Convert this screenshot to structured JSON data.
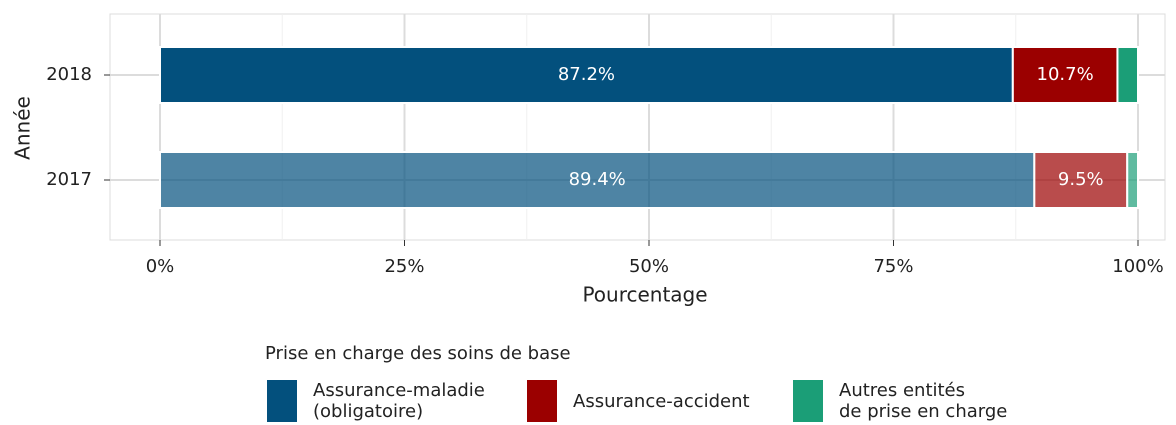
{
  "chart_data": {
    "type": "stacked_barh",
    "xlabel": "Pourcentage",
    "ylabel": "Année",
    "categories": [
      "2017",
      "2018"
    ],
    "category_opacity": [
      0.7,
      1
    ],
    "series": [
      {
        "name": "Assurance-maladie\n(obligatoire)",
        "color": "#03507d",
        "values": [
          89.4,
          87.2
        ],
        "value_labels": [
          "89.4%",
          "87.2%"
        ]
      },
      {
        "name": "Assurance-accident",
        "color": "#9b0000",
        "values": [
          9.5,
          10.7
        ],
        "value_labels": [
          "9.5%",
          "10.7%"
        ]
      },
      {
        "name": "Autres entités\nde prise en charge",
        "color": "#1b9e77",
        "values": [
          1.1,
          2.1
        ]
      }
    ],
    "xlim": [
      0,
      100
    ],
    "xticks": [
      {
        "value": 0,
        "label": "0%"
      },
      {
        "value": 25,
        "label": "25%"
      },
      {
        "value": 50,
        "label": "50%"
      },
      {
        "value": 75,
        "label": "75%"
      },
      {
        "value": 100,
        "label": "100%"
      }
    ],
    "grid": true,
    "legend": {
      "title": "Prise en charge des soins de base",
      "position": "bottom"
    }
  }
}
